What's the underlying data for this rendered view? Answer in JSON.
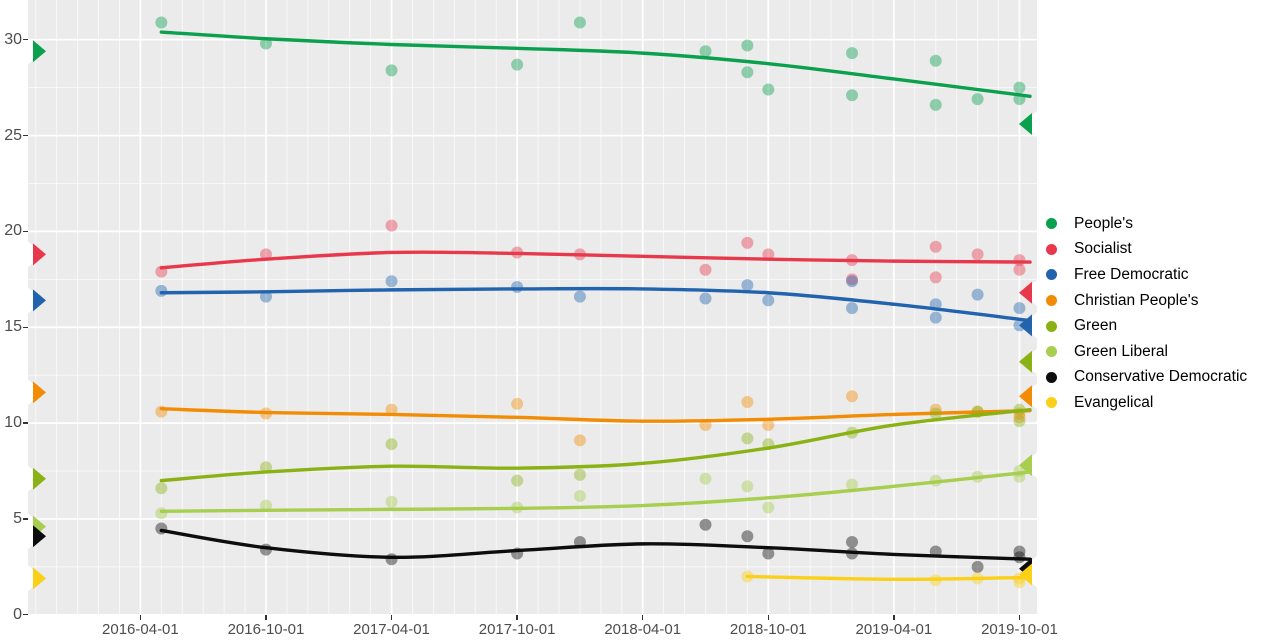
{
  "chart_data": {
    "type": "scatter",
    "description": "Opinion polling with smoothed trend lines per party; triangular edge markers show election results at panel edges (left = 2015 result, right = 2019 result).",
    "x_axis": {
      "tick_labels": [
        "2016-04-01",
        "2016-10-01",
        "2017-04-01",
        "2017-10-01",
        "2018-04-01",
        "2018-10-01",
        "2019-04-01",
        "2019-10-01"
      ],
      "minor_grid": "monthly",
      "grid": true
    },
    "y_axis": {
      "tick_labels": [
        "0",
        "5",
        "10",
        "15",
        "20",
        "25",
        "30"
      ],
      "range": [
        0,
        31.6
      ],
      "major_step": 5,
      "minor_step": 2.5
    },
    "style": {
      "panel_background": "#EBEBEB",
      "grid_color": "#FFFFFF",
      "axis_text_color": "#4d4d4d",
      "tick_color": "#333333",
      "point_opacity": 0.42
    },
    "series": [
      {
        "name": "People's",
        "color": "#0aa04e",
        "election_2015": 29.4,
        "election_2019": 25.6,
        "trend": {
          "dates": [
            "2016-05",
            "2016-10",
            "2017-04",
            "2017-10",
            "2018-04",
            "2018-10",
            "2019-04",
            "2019-11"
          ],
          "values": [
            30.4,
            30.05,
            29.75,
            29.55,
            29.3,
            28.75,
            27.95,
            27.05
          ]
        },
        "polls": [
          [
            "2016-05",
            30.9
          ],
          [
            "2016-10",
            29.8
          ],
          [
            "2017-04",
            28.4
          ],
          [
            "2017-10",
            28.7
          ],
          [
            "2018-01",
            30.9
          ],
          [
            "2018-07",
            29.4
          ],
          [
            "2018-09",
            29.7
          ],
          [
            "2018-09",
            28.3
          ],
          [
            "2018-10",
            27.4
          ],
          [
            "2019-02",
            29.3
          ],
          [
            "2019-02",
            27.1
          ],
          [
            "2019-06",
            28.9
          ],
          [
            "2019-06",
            26.6
          ],
          [
            "2019-08",
            26.9
          ],
          [
            "2019-10",
            27.5
          ],
          [
            "2019-10",
            26.9
          ]
        ]
      },
      {
        "name": "Socialist",
        "color": "#e8394c",
        "election_2015": 18.8,
        "election_2019": 16.8,
        "trend": {
          "dates": [
            "2016-05",
            "2016-10",
            "2017-04",
            "2017-10",
            "2018-04",
            "2018-10",
            "2019-04",
            "2019-11"
          ],
          "values": [
            18.1,
            18.55,
            18.9,
            18.85,
            18.7,
            18.55,
            18.45,
            18.4
          ]
        },
        "polls": [
          [
            "2016-05",
            17.9
          ],
          [
            "2016-10",
            18.8
          ],
          [
            "2017-04",
            20.3
          ],
          [
            "2017-10",
            18.9
          ],
          [
            "2018-01",
            18.8
          ],
          [
            "2018-07",
            18.0
          ],
          [
            "2018-09",
            19.4
          ],
          [
            "2018-10",
            18.8
          ],
          [
            "2019-02",
            18.5
          ],
          [
            "2019-02",
            17.5
          ],
          [
            "2019-06",
            19.2
          ],
          [
            "2019-06",
            17.6
          ],
          [
            "2019-08",
            18.8
          ],
          [
            "2019-10",
            18.5
          ],
          [
            "2019-10",
            18.0
          ]
        ]
      },
      {
        "name": "Free Democratic",
        "color": "#2263ae",
        "election_2015": 16.4,
        "election_2019": 15.1,
        "trend": {
          "dates": [
            "2016-05",
            "2016-10",
            "2017-04",
            "2017-10",
            "2018-04",
            "2018-10",
            "2019-04",
            "2019-11"
          ],
          "values": [
            16.8,
            16.85,
            16.95,
            17.0,
            17.0,
            16.8,
            16.2,
            15.35
          ]
        },
        "polls": [
          [
            "2016-05",
            16.9
          ],
          [
            "2016-10",
            16.6
          ],
          [
            "2017-04",
            17.4
          ],
          [
            "2017-10",
            17.1
          ],
          [
            "2018-01",
            16.6
          ],
          [
            "2018-07",
            16.5
          ],
          [
            "2018-09",
            17.2
          ],
          [
            "2018-10",
            16.4
          ],
          [
            "2019-02",
            17.4
          ],
          [
            "2019-02",
            16.0
          ],
          [
            "2019-06",
            16.2
          ],
          [
            "2019-06",
            15.5
          ],
          [
            "2019-08",
            16.7
          ],
          [
            "2019-10",
            16.0
          ],
          [
            "2019-10",
            15.1
          ]
        ]
      },
      {
        "name": "Christian People's",
        "color": "#f28c05",
        "election_2015": 11.6,
        "election_2019": 11.4,
        "trend": {
          "dates": [
            "2016-05",
            "2016-10",
            "2017-04",
            "2017-10",
            "2018-04",
            "2018-10",
            "2019-04",
            "2019-11"
          ],
          "values": [
            10.75,
            10.55,
            10.45,
            10.3,
            10.1,
            10.2,
            10.45,
            10.65
          ]
        },
        "polls": [
          [
            "2016-05",
            10.6
          ],
          [
            "2016-10",
            10.5
          ],
          [
            "2017-04",
            10.7
          ],
          [
            "2017-10",
            11.0
          ],
          [
            "2018-01",
            9.1
          ],
          [
            "2018-07",
            9.9
          ],
          [
            "2018-09",
            11.1
          ],
          [
            "2018-10",
            9.9
          ],
          [
            "2019-02",
            11.4
          ],
          [
            "2019-06",
            10.7
          ],
          [
            "2019-08",
            10.6
          ],
          [
            "2019-10",
            10.5
          ],
          [
            "2019-10",
            10.3
          ]
        ]
      },
      {
        "name": "Green",
        "color": "#8ab215",
        "election_2015": 7.1,
        "election_2019": 13.2,
        "trend": {
          "dates": [
            "2016-05",
            "2016-10",
            "2017-04",
            "2017-10",
            "2018-04",
            "2018-10",
            "2019-04",
            "2019-11"
          ],
          "values": [
            7.0,
            7.45,
            7.75,
            7.65,
            7.9,
            8.7,
            9.9,
            10.7
          ]
        },
        "polls": [
          [
            "2016-05",
            6.6
          ],
          [
            "2016-10",
            7.7
          ],
          [
            "2017-04",
            8.9
          ],
          [
            "2017-10",
            7.0
          ],
          [
            "2018-01",
            7.3
          ],
          [
            "2018-09",
            9.2
          ],
          [
            "2018-10",
            8.9
          ],
          [
            "2019-02",
            9.5
          ],
          [
            "2019-06",
            10.5
          ],
          [
            "2019-08",
            10.6
          ],
          [
            "2019-10",
            10.7
          ],
          [
            "2019-10",
            10.1
          ]
        ]
      },
      {
        "name": "Green Liberal",
        "color": "#a8ce4f",
        "election_2015": 4.6,
        "election_2019": 7.8,
        "trend": {
          "dates": [
            "2016-05",
            "2016-10",
            "2017-04",
            "2017-10",
            "2018-04",
            "2018-10",
            "2019-04",
            "2019-11"
          ],
          "values": [
            5.4,
            5.45,
            5.5,
            5.55,
            5.7,
            6.1,
            6.7,
            7.45
          ]
        },
        "polls": [
          [
            "2016-05",
            5.3
          ],
          [
            "2016-10",
            5.7
          ],
          [
            "2017-04",
            5.9
          ],
          [
            "2017-10",
            5.6
          ],
          [
            "2018-01",
            6.2
          ],
          [
            "2018-07",
            7.1
          ],
          [
            "2018-09",
            6.7
          ],
          [
            "2018-10",
            5.6
          ],
          [
            "2019-02",
            6.8
          ],
          [
            "2019-06",
            7.0
          ],
          [
            "2019-08",
            7.2
          ],
          [
            "2019-10",
            7.5
          ],
          [
            "2019-10",
            7.2
          ]
        ]
      },
      {
        "name": "Conservative Democratic",
        "color": "#0d0d0d",
        "election_2015": 4.1,
        "election_2019": 2.4,
        "trend": {
          "dates": [
            "2016-05",
            "2016-10",
            "2017-04",
            "2017-10",
            "2018-04",
            "2018-10",
            "2019-04",
            "2019-11"
          ],
          "values": [
            4.4,
            3.5,
            3.0,
            3.35,
            3.7,
            3.5,
            3.15,
            2.9
          ]
        },
        "polls": [
          [
            "2016-05",
            4.5
          ],
          [
            "2016-10",
            3.4
          ],
          [
            "2017-04",
            2.9
          ],
          [
            "2017-10",
            3.2
          ],
          [
            "2018-01",
            3.8
          ],
          [
            "2018-07",
            4.7
          ],
          [
            "2018-09",
            4.1
          ],
          [
            "2018-10",
            3.2
          ],
          [
            "2019-02",
            3.8
          ],
          [
            "2019-02",
            3.2
          ],
          [
            "2019-06",
            3.3
          ],
          [
            "2019-08",
            2.5
          ],
          [
            "2019-10",
            3.3
          ],
          [
            "2019-10",
            3.0
          ]
        ]
      },
      {
        "name": "Evangelical",
        "color": "#fbd019",
        "election_2015": 1.9,
        "election_2019": 2.1,
        "trend": {
          "dates": [
            "2018-09",
            "2019-01",
            "2019-05",
            "2019-11"
          ],
          "values": [
            2.0,
            1.9,
            1.85,
            1.95
          ]
        },
        "polls": [
          [
            "2018-09",
            2.0
          ],
          [
            "2019-06",
            1.8
          ],
          [
            "2019-08",
            1.9
          ],
          [
            "2019-10",
            1.9
          ],
          [
            "2019-10",
            1.7
          ]
        ]
      }
    ]
  }
}
